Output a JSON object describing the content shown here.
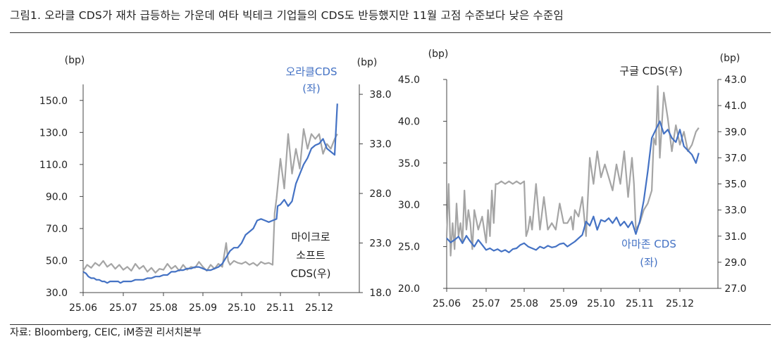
{
  "figure": {
    "title": "그림1.   오라클 CDS가 재차 급등하는 가운데 여타 빅테크 기업들의 CDS도 반등했지만 11월 고점 수준보다 낮은 수준임",
    "source": "자료: Bloomberg, CEIC, iM증권 리서치본부"
  },
  "chart_data": [
    {
      "type": "line",
      "x_ticks": [
        "25.06",
        "25.07",
        "25.08",
        "25.09",
        "25.10",
        "25.11",
        "25.12"
      ],
      "y_left": {
        "unit": "(bp)",
        "range": [
          30,
          160
        ],
        "ticks": [
          "150.0",
          "130.0",
          "110.0",
          "90.0",
          "70.0",
          "50.0",
          "30.0"
        ]
      },
      "y_right": {
        "unit": "(bp)",
        "range": [
          18,
          39
        ],
        "ticks": [
          "38.0",
          "33.0",
          "28.0",
          "23.0",
          "18.0"
        ]
      },
      "series": [
        {
          "name": [
            "오라클CDS",
            "(좌)"
          ],
          "axis": "left",
          "color": "#4472C4",
          "x": [
            0,
            0.07,
            0.13,
            0.2,
            0.27,
            0.33,
            0.4,
            0.47,
            0.53,
            0.6,
            0.67,
            0.73,
            0.8,
            0.87,
            0.93,
            1.0,
            1.1,
            1.2,
            1.3,
            1.4,
            1.5,
            1.6,
            1.7,
            1.8,
            1.9,
            2.0,
            2.1,
            2.2,
            2.3,
            2.4,
            2.5,
            2.6,
            2.7,
            2.8,
            2.9,
            3.0,
            3.1,
            3.2,
            3.3,
            3.4,
            3.5,
            3.6,
            3.7,
            3.8,
            3.9,
            4.0,
            4.1,
            4.2,
            4.3,
            4.4,
            4.5,
            4.6,
            4.7,
            4.8,
            4.9,
            4.93,
            5.0,
            5.1,
            5.2,
            5.3,
            5.4,
            5.5,
            5.6,
            5.7,
            5.8,
            5.9,
            6.0,
            6.1,
            6.2,
            6.3,
            6.4,
            6.47
          ],
          "y": [
            43,
            42,
            40,
            39,
            39,
            38,
            38,
            37,
            37,
            36,
            37,
            37,
            37,
            37,
            36,
            37,
            37,
            37,
            38,
            38,
            38,
            39,
            39,
            40,
            40,
            41,
            41,
            43,
            43,
            44,
            44,
            45,
            45,
            46,
            46,
            45,
            44,
            44,
            45,
            46,
            48,
            52,
            56,
            58,
            58,
            61,
            66,
            68,
            70,
            75,
            76,
            75,
            74,
            75,
            76,
            84,
            85,
            88,
            84,
            87,
            98,
            104,
            110,
            114,
            120,
            122,
            123,
            126,
            120,
            118,
            116,
            148
          ]
        },
        {
          "name": [
            "마이크로",
            "소프트",
            "CDS(우)"
          ],
          "axis": "right",
          "color": "#A5A5A5",
          "x": [
            0,
            0.1,
            0.2,
            0.3,
            0.4,
            0.5,
            0.6,
            0.7,
            0.8,
            0.9,
            1.0,
            1.1,
            1.2,
            1.3,
            1.4,
            1.5,
            1.6,
            1.7,
            1.8,
            1.9,
            2.0,
            2.1,
            2.2,
            2.3,
            2.4,
            2.5,
            2.6,
            2.7,
            2.8,
            2.9,
            3.0,
            3.1,
            3.2,
            3.3,
            3.4,
            3.5,
            3.6,
            3.65,
            3.7,
            3.8,
            3.9,
            4.0,
            4.1,
            4.2,
            4.3,
            4.4,
            4.5,
            4.6,
            4.7,
            4.8,
            4.85,
            4.9,
            5.0,
            5.1,
            5.2,
            5.3,
            5.4,
            5.5,
            5.6,
            5.7,
            5.8,
            5.9,
            6.0,
            6.1,
            6.2,
            6.3,
            6.4,
            6.47
          ],
          "y": [
            20.2,
            20.8,
            20.5,
            21.0,
            20.7,
            21.2,
            20.6,
            20.9,
            20.4,
            20.8,
            20.3,
            20.6,
            20.2,
            20.9,
            20.4,
            20.7,
            20.1,
            20.5,
            20.0,
            20.4,
            20.3,
            20.9,
            20.4,
            20.7,
            20.2,
            20.8,
            20.3,
            20.6,
            20.5,
            21.1,
            20.6,
            20.2,
            20.8,
            20.4,
            20.9,
            20.6,
            23.0,
            21.2,
            20.8,
            21.2,
            21.0,
            20.9,
            21.1,
            20.8,
            21.0,
            20.7,
            21.1,
            20.9,
            21.0,
            20.8,
            26.0,
            27.5,
            31.5,
            28.5,
            34.0,
            30.0,
            32.5,
            30.5,
            34.5,
            32.5,
            34.0,
            33.5,
            34.0,
            32.0,
            33.0,
            32.5,
            33.5,
            34.0
          ]
        }
      ]
    },
    {
      "type": "line",
      "x_ticks": [
        "25.06",
        "25.07",
        "25.08",
        "25.09",
        "25.10",
        "25.11",
        "25.12"
      ],
      "y_left": {
        "unit": "(bp)",
        "range": [
          20,
          45
        ],
        "ticks": [
          "45.0",
          "40.0",
          "35.0",
          "30.0",
          "25.0",
          "20.0"
        ]
      },
      "y_right": {
        "unit": "(bp)",
        "range": [
          27,
          43
        ],
        "ticks": [
          "43.0",
          "41.0",
          "39.0",
          "37.0",
          "35.0",
          "33.0",
          "31.0",
          "29.0",
          "27.0"
        ]
      },
      "series": [
        {
          "name": [
            "아마존 CDS",
            "(좌)"
          ],
          "axis": "left",
          "color": "#4472C4",
          "x": [
            0,
            0.1,
            0.2,
            0.3,
            0.4,
            0.5,
            0.6,
            0.7,
            0.8,
            0.9,
            1.0,
            1.1,
            1.2,
            1.3,
            1.4,
            1.5,
            1.6,
            1.7,
            1.8,
            1.9,
            2.0,
            2.1,
            2.2,
            2.3,
            2.4,
            2.5,
            2.6,
            2.7,
            2.8,
            2.9,
            3.0,
            3.1,
            3.2,
            3.3,
            3.4,
            3.5,
            3.6,
            3.7,
            3.8,
            3.9,
            4.0,
            4.1,
            4.2,
            4.3,
            4.4,
            4.5,
            4.6,
            4.7,
            4.8,
            4.9,
            5.0,
            5.1,
            5.2,
            5.3,
            5.4,
            5.5,
            5.6,
            5.7,
            5.8,
            5.9,
            6.0,
            6.1,
            6.2,
            6.3,
            6.4,
            6.47
          ],
          "y": [
            26.0,
            25.5,
            25.8,
            26.2,
            25.4,
            26.3,
            25.6,
            25.0,
            25.8,
            25.2,
            24.6,
            24.8,
            24.5,
            24.7,
            24.4,
            24.6,
            24.3,
            24.7,
            24.8,
            25.2,
            25.4,
            25.0,
            24.8,
            24.6,
            25.0,
            24.8,
            25.1,
            24.9,
            25.0,
            25.3,
            25.4,
            25.0,
            25.3,
            25.6,
            26.0,
            26.4,
            28.0,
            27.5,
            28.6,
            27.0,
            28.2,
            28.0,
            28.4,
            27.8,
            28.5,
            27.5,
            28.0,
            27.3,
            28.0,
            26.5,
            28.0,
            30.5,
            34.0,
            38.0,
            39.0,
            40.0,
            38.5,
            39.0,
            38.0,
            37.5,
            39.0,
            37.0,
            36.5,
            36.0,
            35.0,
            36.2
          ]
        },
        {
          "name": [
            "구글 CDS(우)"
          ],
          "axis": "right",
          "color": "#A5A5A5",
          "x": [
            0,
            0.05,
            0.1,
            0.15,
            0.2,
            0.25,
            0.3,
            0.35,
            0.4,
            0.45,
            0.5,
            0.55,
            0.6,
            0.65,
            0.7,
            0.8,
            0.9,
            1.0,
            1.05,
            1.1,
            1.15,
            1.2,
            1.25,
            1.3,
            1.4,
            1.5,
            1.6,
            1.7,
            1.8,
            1.9,
            2.0,
            2.05,
            2.1,
            2.15,
            2.2,
            2.3,
            2.4,
            2.5,
            2.6,
            2.7,
            2.8,
            2.9,
            3.0,
            3.1,
            3.2,
            3.25,
            3.3,
            3.4,
            3.5,
            3.6,
            3.7,
            3.8,
            3.9,
            4.0,
            4.1,
            4.2,
            4.3,
            4.4,
            4.5,
            4.6,
            4.7,
            4.8,
            4.85,
            4.9,
            5.0,
            5.1,
            5.2,
            5.3,
            5.35,
            5.4,
            5.45,
            5.5,
            5.6,
            5.7,
            5.8,
            5.9,
            6.0,
            6.1,
            6.2,
            6.3,
            6.4,
            6.47
          ],
          "y": [
            31.0,
            35.0,
            29.5,
            32.0,
            30.0,
            33.5,
            31.0,
            32.0,
            30.5,
            34.5,
            31.5,
            33.0,
            32.0,
            30.0,
            33.0,
            31.5,
            32.5,
            30.5,
            33.0,
            31.0,
            34.5,
            32.0,
            35.0,
            35.0,
            35.2,
            35.0,
            35.2,
            35.0,
            35.2,
            35.0,
            35.2,
            31.0,
            31.5,
            32.5,
            31.5,
            35.0,
            31.5,
            34.0,
            31.5,
            32.0,
            31.5,
            33.5,
            32.0,
            32.0,
            32.5,
            31.5,
            33.0,
            32.5,
            34.0,
            31.0,
            37.0,
            35.0,
            37.5,
            35.5,
            36.5,
            35.5,
            34.5,
            36.5,
            35.0,
            37.5,
            34.0,
            37.0,
            35.0,
            31.5,
            32.0,
            33.0,
            33.5,
            34.5,
            38.5,
            38.0,
            42.5,
            37.0,
            42.0,
            40.0,
            37.5,
            39.5,
            38.0,
            39.0,
            37.5,
            38.0,
            39.0,
            39.3
          ]
        }
      ]
    }
  ]
}
